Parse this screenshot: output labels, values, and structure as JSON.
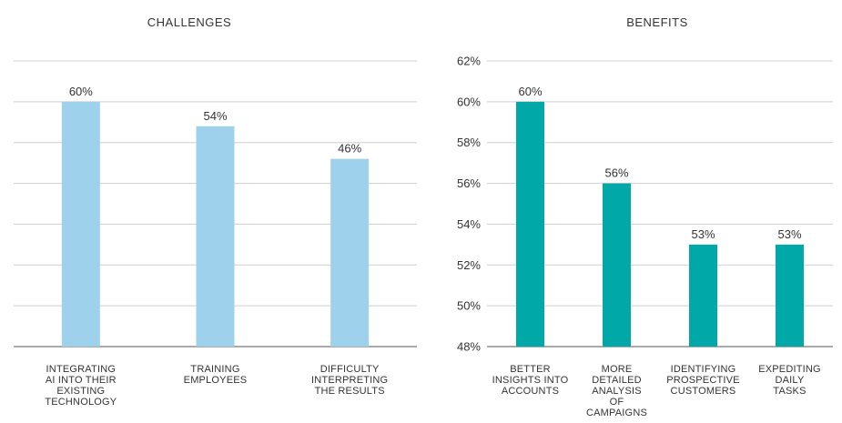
{
  "chart_data": [
    {
      "type": "bar",
      "title": "CHALLENGES",
      "categories": [
        [
          "INTEGRATING",
          "AI INTO THEIR",
          "EXISTING",
          "TECHNOLOGY"
        ],
        [
          "TRAINING",
          "EMPLOYEES"
        ],
        [
          "DIFFICULTY",
          "INTERPRETING",
          "THE RESULTS"
        ]
      ],
      "values": [
        60,
        54,
        46
      ],
      "data_labels": [
        "60%",
        "54%",
        "46%"
      ],
      "color": "#9dd1ec",
      "ylim": [
        0,
        70
      ],
      "y_axis_labels_shown": false,
      "grid": true
    },
    {
      "type": "bar",
      "title": "BENEFITS",
      "categories": [
        [
          "BETTER",
          "INSIGHTS INTO",
          "ACCOUNTS"
        ],
        [
          "MORE",
          "DETAILED",
          "ANALYSIS",
          "OF",
          "CAMPAIGNS"
        ],
        [
          "IDENTIFYING",
          "PROSPECTIVE",
          "CUSTOMERS"
        ],
        [
          "EXPEDITING",
          "DAILY",
          "TASKS"
        ]
      ],
      "values": [
        60,
        56,
        53,
        53
      ],
      "data_labels": [
        "60%",
        "56%",
        "53%",
        "53%"
      ],
      "color": "#00a9a8",
      "ylim": [
        48,
        62
      ],
      "yticks": [
        48,
        50,
        52,
        54,
        56,
        58,
        60,
        62
      ],
      "ytick_labels": [
        "48%",
        "50%",
        "52%",
        "54%",
        "56%",
        "58%",
        "60%",
        "62%"
      ],
      "y_axis_labels_shown": true,
      "grid": true
    }
  ]
}
